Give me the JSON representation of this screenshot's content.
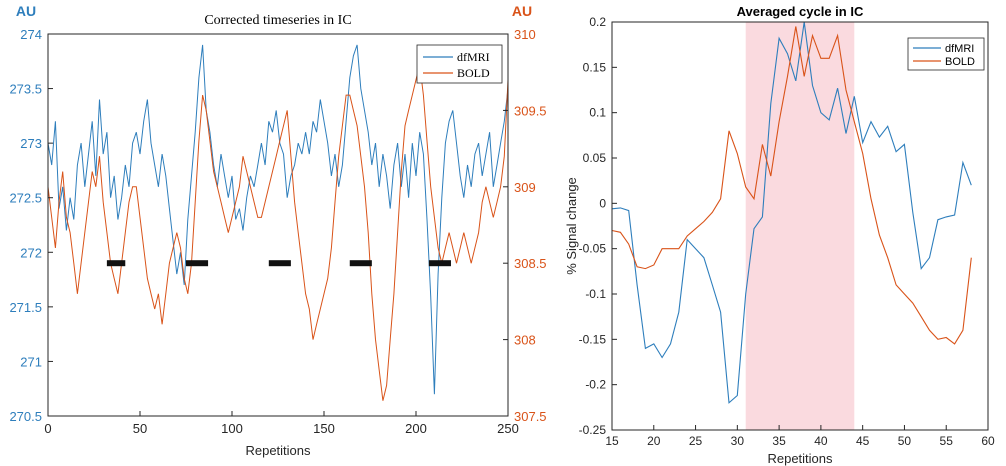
{
  "colors": {
    "dfmri": "#2e7ebc",
    "bold": "#d95319",
    "highlight": "#fadadf",
    "axis": "#262626"
  },
  "chart_data": [
    {
      "type": "line",
      "title": "Corrected timeseries in IC",
      "xlabel": "Repetitions",
      "left_axis_unit": "AU",
      "right_axis_unit": "AU",
      "xlim": [
        0,
        250
      ],
      "ylim_left": [
        270.5,
        274
      ],
      "ylim_right": [
        307.5,
        310
      ],
      "x_ticks": [
        "0",
        "50",
        "100",
        "150",
        "200",
        "250"
      ],
      "y_ticks_left": [
        "270.5",
        "271",
        "271.5",
        "272",
        "272.5",
        "273",
        "273.5",
        "274"
      ],
      "y_ticks_right": [
        "307.5",
        "308",
        "308.5",
        "309",
        "309.5",
        "310"
      ],
      "legend_position": "top-right",
      "stimulus_blocks": [
        [
          32,
          42
        ],
        [
          75,
          87
        ],
        [
          120,
          132
        ],
        [
          164,
          176
        ],
        [
          207,
          219
        ]
      ],
      "stimulus_level": 271.9,
      "series": [
        {
          "name": "dfMRI",
          "axis": "left",
          "x": [
            0,
            2,
            4,
            6,
            8,
            10,
            12,
            14,
            16,
            18,
            20,
            22,
            24,
            26,
            28,
            30,
            32,
            34,
            36,
            38,
            40,
            42,
            44,
            46,
            48,
            50,
            52,
            54,
            56,
            58,
            60,
            62,
            64,
            66,
            68,
            70,
            72,
            74,
            76,
            78,
            80,
            82,
            84,
            86,
            88,
            90,
            92,
            94,
            96,
            98,
            100,
            102,
            104,
            106,
            108,
            110,
            112,
            114,
            116,
            118,
            120,
            122,
            124,
            126,
            128,
            130,
            132,
            134,
            136,
            138,
            140,
            142,
            144,
            146,
            148,
            150,
            152,
            154,
            156,
            158,
            160,
            162,
            164,
            166,
            168,
            170,
            172,
            174,
            176,
            178,
            180,
            182,
            184,
            186,
            188,
            190,
            192,
            194,
            196,
            198,
            200,
            202,
            204,
            206,
            208,
            210,
            212,
            214,
            216,
            218,
            220,
            222,
            224,
            226,
            228,
            230,
            232,
            234,
            236,
            238,
            240,
            242,
            244,
            246,
            248,
            250
          ],
          "y": [
            273.0,
            272.8,
            273.2,
            272.4,
            272.6,
            272.2,
            272.5,
            272.3,
            272.8,
            273.0,
            272.6,
            272.9,
            273.2,
            272.7,
            273.4,
            272.9,
            273.1,
            272.5,
            272.7,
            272.3,
            272.5,
            272.8,
            272.6,
            273.0,
            273.1,
            272.9,
            273.2,
            273.4,
            273.0,
            272.8,
            272.6,
            272.9,
            272.7,
            272.4,
            272.1,
            271.8,
            272.0,
            271.7,
            272.3,
            272.7,
            273.1,
            273.6,
            273.9,
            273.3,
            273.1,
            272.8,
            272.6,
            272.9,
            272.7,
            272.5,
            272.7,
            272.3,
            272.4,
            272.2,
            272.5,
            272.7,
            272.6,
            272.8,
            273.0,
            272.8,
            273.2,
            273.1,
            273.3,
            273.0,
            272.9,
            272.5,
            272.7,
            272.8,
            273.0,
            272.9,
            273.1,
            272.9,
            273.2,
            273.1,
            273.4,
            273.2,
            273.0,
            272.7,
            272.9,
            272.6,
            272.8,
            273.2,
            273.6,
            273.8,
            273.9,
            273.5,
            273.3,
            273.1,
            272.8,
            273.0,
            272.6,
            272.9,
            272.7,
            272.4,
            272.8,
            273.0,
            272.6,
            272.9,
            272.5,
            273.0,
            272.7,
            273.1,
            272.9,
            272.3,
            271.6,
            270.7,
            271.8,
            272.5,
            273.0,
            273.2,
            273.3,
            273.0,
            272.7,
            272.5,
            272.8,
            272.6,
            272.9,
            273.0,
            272.7,
            272.9,
            273.1,
            272.6,
            272.8,
            273.0,
            273.2,
            273.5
          ]
        },
        {
          "name": "BOLD",
          "axis": "right",
          "x": [
            0,
            2,
            4,
            6,
            8,
            10,
            12,
            14,
            16,
            18,
            20,
            22,
            24,
            26,
            28,
            30,
            32,
            34,
            36,
            38,
            40,
            42,
            44,
            46,
            48,
            50,
            52,
            54,
            56,
            58,
            60,
            62,
            64,
            66,
            68,
            70,
            72,
            74,
            76,
            78,
            80,
            82,
            84,
            86,
            88,
            90,
            92,
            94,
            96,
            98,
            100,
            102,
            104,
            106,
            108,
            110,
            112,
            114,
            116,
            118,
            120,
            122,
            124,
            126,
            128,
            130,
            132,
            134,
            136,
            138,
            140,
            142,
            144,
            146,
            148,
            150,
            152,
            154,
            156,
            158,
            160,
            162,
            164,
            166,
            168,
            170,
            172,
            174,
            176,
            178,
            180,
            182,
            184,
            186,
            188,
            190,
            192,
            194,
            196,
            198,
            200,
            202,
            204,
            206,
            208,
            210,
            212,
            214,
            216,
            218,
            220,
            222,
            224,
            226,
            228,
            230,
            232,
            234,
            236,
            238,
            240,
            242,
            244,
            246,
            248,
            250
          ],
          "y": [
            309.0,
            308.8,
            308.6,
            308.9,
            309.1,
            308.8,
            308.7,
            308.5,
            308.3,
            308.5,
            308.7,
            308.9,
            309.1,
            309.0,
            309.2,
            308.9,
            308.7,
            308.5,
            308.4,
            308.3,
            308.5,
            308.7,
            308.9,
            309.0,
            309.0,
            308.8,
            308.6,
            308.4,
            308.3,
            308.2,
            308.3,
            308.1,
            308.3,
            308.5,
            308.6,
            308.7,
            308.6,
            308.4,
            308.3,
            308.5,
            308.9,
            309.3,
            309.6,
            309.5,
            309.3,
            309.1,
            309.0,
            308.9,
            308.8,
            308.7,
            308.8,
            308.9,
            309.0,
            309.2,
            309.1,
            309.0,
            308.9,
            308.8,
            308.8,
            308.9,
            309.0,
            309.1,
            309.2,
            309.3,
            309.4,
            309.5,
            309.2,
            308.9,
            308.7,
            308.5,
            308.3,
            308.2,
            308.0,
            308.1,
            308.2,
            308.3,
            308.4,
            308.6,
            308.9,
            309.2,
            309.4,
            309.6,
            309.6,
            309.5,
            309.4,
            309.2,
            309.0,
            308.7,
            308.3,
            308.0,
            307.8,
            307.6,
            307.7,
            308.0,
            308.3,
            308.7,
            309.1,
            309.4,
            309.5,
            309.6,
            309.7,
            309.8,
            309.6,
            309.3,
            309.0,
            308.8,
            308.6,
            308.5,
            308.6,
            308.7,
            308.6,
            308.5,
            308.6,
            308.7,
            308.6,
            308.5,
            308.6,
            308.7,
            308.9,
            309.0,
            308.9,
            308.8,
            308.9,
            309.0,
            309.2,
            309.7
          ]
        }
      ]
    },
    {
      "type": "line",
      "title": "Averaged cycle in IC",
      "xlabel": "Repetitions",
      "ylabel": "% Signal change",
      "xlim": [
        15,
        60
      ],
      "ylim": [
        -0.25,
        0.2
      ],
      "x_ticks": [
        "15",
        "20",
        "25",
        "30",
        "35",
        "40",
        "45",
        "50",
        "55",
        "60"
      ],
      "y_ticks": [
        "-0.25",
        "-0.2",
        "-0.15",
        "-0.1",
        "-0.05",
        "0",
        "0.05",
        "0.1",
        "0.15",
        "0.2"
      ],
      "highlight_range": [
        31,
        44
      ],
      "legend_position": "top-right",
      "series": [
        {
          "name": "dfMRI",
          "x": [
            15,
            16,
            17,
            18,
            19,
            20,
            21,
            22,
            23,
            24,
            25,
            26,
            27,
            28,
            29,
            30,
            31,
            32,
            33,
            34,
            35,
            36,
            37,
            38,
            39,
            40,
            41,
            42,
            43,
            44,
            45,
            46,
            47,
            48,
            49,
            50,
            51,
            52,
            53,
            54,
            55,
            56,
            57,
            58
          ],
          "y": [
            -0.006,
            -0.005,
            -0.008,
            -0.09,
            -0.16,
            -0.155,
            -0.17,
            -0.155,
            -0.12,
            -0.04,
            -0.05,
            -0.06,
            -0.09,
            -0.12,
            -0.22,
            -0.212,
            -0.1,
            -0.028,
            -0.015,
            0.11,
            0.182,
            0.165,
            0.135,
            0.2,
            0.13,
            0.1,
            0.092,
            0.127,
            0.077,
            0.118,
            0.067,
            0.09,
            0.073,
            0.085,
            0.057,
            0.065,
            -0.01,
            -0.072,
            -0.06,
            -0.018,
            -0.015,
            -0.013,
            0.045,
            0.02
          ]
        },
        {
          "name": "BOLD",
          "x": [
            15,
            16,
            17,
            18,
            19,
            20,
            21,
            22,
            23,
            24,
            25,
            26,
            27,
            28,
            29,
            30,
            31,
            32,
            33,
            34,
            35,
            36,
            37,
            38,
            39,
            40,
            41,
            42,
            43,
            44,
            45,
            46,
            47,
            48,
            49,
            50,
            51,
            52,
            53,
            54,
            55,
            56,
            57,
            58
          ],
          "y": [
            -0.03,
            -0.032,
            -0.045,
            -0.07,
            -0.072,
            -0.068,
            -0.05,
            -0.05,
            -0.05,
            -0.036,
            -0.028,
            -0.02,
            -0.01,
            0.005,
            0.08,
            0.055,
            0.018,
            0.005,
            0.065,
            0.03,
            0.09,
            0.14,
            0.195,
            0.14,
            0.185,
            0.16,
            0.16,
            0.185,
            0.125,
            0.09,
            0.055,
            0.005,
            -0.035,
            -0.06,
            -0.09,
            -0.1,
            -0.11,
            -0.125,
            -0.14,
            -0.15,
            -0.148,
            -0.155,
            -0.14,
            -0.06
          ]
        }
      ]
    }
  ]
}
